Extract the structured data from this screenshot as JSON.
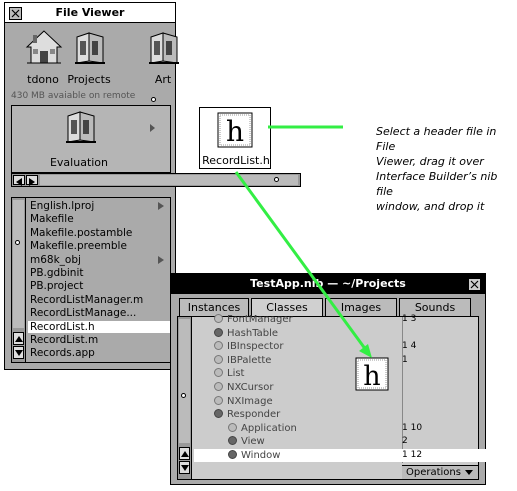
{
  "file_viewer": {
    "title": "File Viewer",
    "icons": [
      {
        "label": "tdono",
        "icon": "home-icon"
      },
      {
        "label": "Projects",
        "icon": "folder-icon"
      },
      {
        "label": "Art",
        "icon": "folder-icon"
      }
    ],
    "status": "430 MB avaiable on remote",
    "browser_items": [
      {
        "label": "Evaluation",
        "icon": "folder-icon"
      },
      {
        "label": "RecordList.h",
        "icon": "header-file-icon"
      }
    ],
    "list_items": [
      {
        "label": "English.lproj",
        "has_children": true
      },
      {
        "label": "Makefile",
        "has_children": false
      },
      {
        "label": "Makefile.postamble",
        "has_children": false
      },
      {
        "label": "Makefile.preemble",
        "has_children": false
      },
      {
        "label": "m68k_obj",
        "has_children": true
      },
      {
        "label": "PB.gdbinit",
        "has_children": false
      },
      {
        "label": "PB.project",
        "has_children": false
      },
      {
        "label": "RecordListManager.m",
        "has_children": false
      },
      {
        "label": "RecordListManage...",
        "has_children": false
      },
      {
        "label": "RecordList.h",
        "has_children": false,
        "selected": true
      },
      {
        "label": "RecordList.m",
        "has_children": false
      },
      {
        "label": "Records.app",
        "has_children": false
      }
    ]
  },
  "nib_window": {
    "title": "TestApp.nib — ~/Projects",
    "tabs": [
      "Instances",
      "Classes",
      "Images",
      "Sounds"
    ],
    "active_tab": "Classes",
    "classes": [
      {
        "name": "FontManager",
        "indent": 0,
        "filled": false,
        "counts": "1  3"
      },
      {
        "name": "HashTable",
        "indent": 0,
        "filled": true,
        "counts": ""
      },
      {
        "name": "IBInspector",
        "indent": 0,
        "filled": false,
        "counts": "1  4"
      },
      {
        "name": "IBPalette",
        "indent": 0,
        "filled": false,
        "counts": "1"
      },
      {
        "name": "List",
        "indent": 0,
        "filled": false,
        "counts": ""
      },
      {
        "name": "NXCursor",
        "indent": 0,
        "filled": false,
        "counts": ""
      },
      {
        "name": "NXImage",
        "indent": 0,
        "filled": false,
        "counts": ""
      },
      {
        "name": "Responder",
        "indent": 0,
        "filled": true,
        "counts": ""
      },
      {
        "name": "Application",
        "indent": 1,
        "filled": false,
        "counts": "1  10"
      },
      {
        "name": "View",
        "indent": 1,
        "filled": true,
        "counts": "2"
      },
      {
        "name": "Window",
        "indent": 1,
        "filled": true,
        "counts": "1  12"
      }
    ],
    "operations_label": "Operations"
  },
  "annotation": {
    "lines": [
      "Select a header file in File",
      "Viewer, drag it over",
      "Interface Builder’s nib file",
      "window, and drop it"
    ]
  },
  "drag_icon": {
    "glyph": "h",
    "icon": "header-file-icon"
  },
  "colors": {
    "arrow": "#33ee44",
    "window_gray": "#aaaaaa",
    "selection": "#ffffff"
  }
}
